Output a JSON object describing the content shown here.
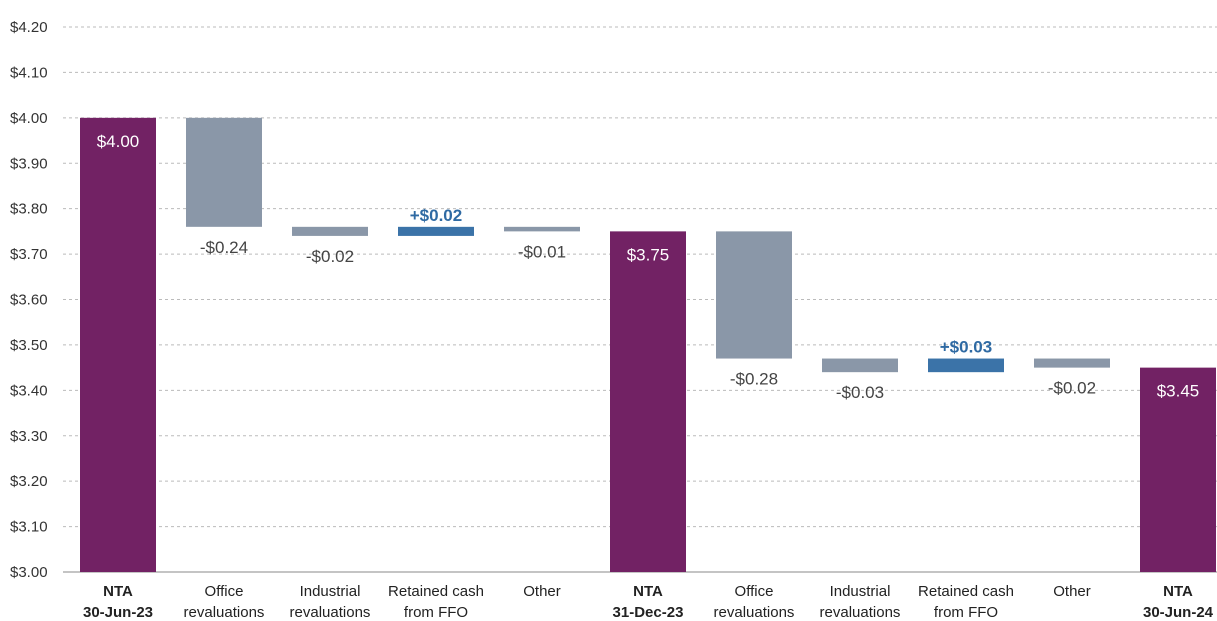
{
  "chart_data": {
    "type": "bar",
    "subtype": "waterfall",
    "ylim": [
      3.0,
      4.2
    ],
    "yticks": [
      "$3.00",
      "$3.10",
      "$3.20",
      "$3.30",
      "$3.40",
      "$3.50",
      "$3.60",
      "$3.70",
      "$3.80",
      "$3.90",
      "$4.00",
      "$4.10",
      "$4.20"
    ],
    "ytick_values": [
      3.0,
      3.1,
      3.2,
      3.3,
      3.4,
      3.5,
      3.6,
      3.7,
      3.8,
      3.9,
      4.0,
      4.1,
      4.2
    ],
    "grid": true,
    "colors": {
      "total": "#722264",
      "decrease": "#8a97a8",
      "increase": "#3b73a8",
      "grid": "#bbbbbb",
      "decrease_label": "#444444",
      "increase_label": "#2f6aa3",
      "total_label": "#ffffff"
    },
    "bars": [
      {
        "category": [
          "NTA",
          "30-Jun-23"
        ],
        "bold": true,
        "kind": "total",
        "start": 3.0,
        "end": 4.0,
        "label": "$4.00"
      },
      {
        "category": [
          "Office",
          "revaluations"
        ],
        "bold": false,
        "kind": "decrease",
        "start": 4.0,
        "end": 3.76,
        "label": "-$0.24"
      },
      {
        "category": [
          "Industrial",
          "revaluations"
        ],
        "bold": false,
        "kind": "decrease",
        "start": 3.76,
        "end": 3.74,
        "label": "-$0.02"
      },
      {
        "category": [
          "Retained cash",
          "from FFO"
        ],
        "bold": false,
        "kind": "increase",
        "start": 3.74,
        "end": 3.76,
        "label": "+$0.02"
      },
      {
        "category": [
          "Other"
        ],
        "bold": false,
        "kind": "decrease",
        "start": 3.76,
        "end": 3.75,
        "label": "-$0.01"
      },
      {
        "category": [
          "NTA",
          "31-Dec-23"
        ],
        "bold": true,
        "kind": "total",
        "start": 3.0,
        "end": 3.75,
        "label": "$3.75"
      },
      {
        "category": [
          "Office",
          "revaluations"
        ],
        "bold": false,
        "kind": "decrease",
        "start": 3.75,
        "end": 3.47,
        "label": "-$0.28"
      },
      {
        "category": [
          "Industrial",
          "revaluations"
        ],
        "bold": false,
        "kind": "decrease",
        "start": 3.47,
        "end": 3.44,
        "label": "-$0.03"
      },
      {
        "category": [
          "Retained cash",
          "from FFO"
        ],
        "bold": false,
        "kind": "increase",
        "start": 3.44,
        "end": 3.47,
        "label": "+$0.03"
      },
      {
        "category": [
          "Other"
        ],
        "bold": false,
        "kind": "decrease",
        "start": 3.47,
        "end": 3.45,
        "label": "-$0.02"
      },
      {
        "category": [
          "NTA",
          "30-Jun-24"
        ],
        "bold": true,
        "kind": "total",
        "start": 3.0,
        "end": 3.45,
        "label": "$3.45"
      }
    ]
  }
}
